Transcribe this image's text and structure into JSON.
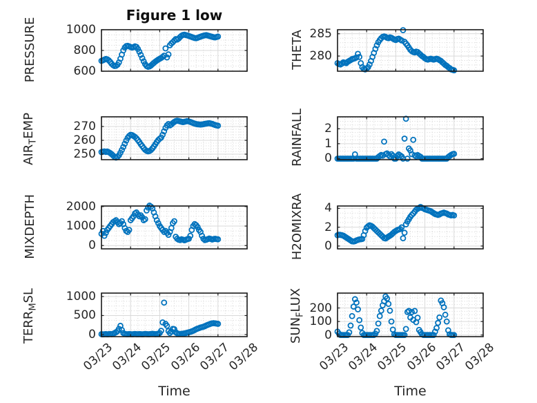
{
  "figure": {
    "title": "Figure 1 low",
    "xlabel": "Time",
    "colors": {
      "marker": "#0072BD",
      "axis_box": "#1a1a1a",
      "grid_major": "#d9d9d9",
      "grid_minor": "#cfcfcf",
      "text": "#262626"
    }
  },
  "x_axis": {
    "tick_labels": [
      "03/23",
      "03/24",
      "03/25",
      "03/26",
      "03/27",
      "03/28"
    ],
    "range_days": [
      0,
      5
    ],
    "major_step_days": 1,
    "minor_step_days": 0.25
  },
  "chart_data": [
    {
      "type": "scatter",
      "name": "pressure",
      "ylabel": "PRESSURE",
      "row": 0,
      "col": 0,
      "ylim": [
        600,
        1000
      ],
      "yticks": [
        600,
        800,
        1000
      ],
      "y_minor_step": 50,
      "series": {
        "t0": 0,
        "dt": 0.05,
        "values": [
          700,
          705,
          712,
          718,
          715,
          705,
          690,
          672,
          658,
          650,
          652,
          662,
          685,
          720,
          760,
          800,
          828,
          842,
          845,
          840,
          833,
          828,
          832,
          840,
          835,
          815,
          788,
          758,
          725,
          695,
          668,
          650,
          642,
          646,
          655,
          668,
          680,
          692,
          702,
          712,
          720,
          728,
          738,
          750,
          820,
          733,
          762,
          850,
          868,
          880,
          895,
          910,
          905,
          915,
          930,
          942,
          950,
          952,
          948,
          945,
          940,
          935,
          930,
          925,
          920,
          918,
          922,
          928,
          933,
          938,
          942,
          946,
          948,
          944,
          940,
          936,
          932,
          928,
          926,
          930,
          934
        ]
      }
    },
    {
      "type": "scatter",
      "name": "theta",
      "ylabel": "THETA",
      "row": 0,
      "col": 1,
      "ylim": [
        276.6,
        285.9
      ],
      "yticks": [
        280,
        285
      ],
      "y_minor_step": 1,
      "series": {
        "t0": 0,
        "dt": 0.05,
        "values": [
          278.4,
          278.2,
          278.1,
          278.3,
          278.6,
          278.5,
          278.4,
          278.7,
          278.9,
          279.1,
          279.3,
          279.4,
          279.5,
          279.7,
          280.5,
          279.8,
          278.4,
          277.5,
          277.1,
          277.0,
          277.2,
          277.5,
          278.1,
          278.9,
          279.8,
          280.7,
          281.6,
          282.4,
          283.1,
          283.6,
          284.0,
          284.3,
          284.4,
          284.3,
          284.1,
          284.0,
          284.2,
          284.1,
          283.9,
          283.7,
          283.6,
          283.8,
          283.9,
          283.7,
          283.5,
          285.8,
          283.2,
          282.8,
          282.4,
          281.9,
          281.4,
          281.1,
          280.9,
          280.8,
          281.0,
          280.9,
          280.6,
          280.3,
          280.0,
          279.8,
          279.5,
          279.3,
          279.2,
          279.3,
          279.4,
          279.3,
          279.2,
          279.3,
          279.4,
          279.3,
          279.1,
          278.9,
          278.6,
          278.3,
          278.0,
          277.8,
          277.5,
          277.3,
          277.0,
          276.9,
          276.8
        ]
      }
    },
    {
      "type": "scatter",
      "name": "air-temp",
      "ylabel": "AIR_TEMP",
      "row": 1,
      "col": 0,
      "ylim": [
        246,
        277
      ],
      "yticks": [
        250,
        260,
        270
      ],
      "y_minor_step": 2,
      "series": {
        "t0": 0,
        "dt": 0.05,
        "values": [
          251.5,
          251.8,
          252.0,
          251.6,
          251.9,
          251.4,
          250.8,
          250.0,
          249.0,
          248.0,
          247.5,
          248.0,
          249.2,
          251.0,
          253.0,
          255.2,
          257.5,
          259.8,
          261.8,
          263.2,
          264.0,
          263.8,
          263.2,
          262.5,
          261.5,
          260.2,
          258.8,
          257.2,
          255.8,
          254.4,
          253.2,
          252.4,
          252.0,
          252.3,
          253.0,
          254.2,
          255.6,
          257.2,
          258.8,
          260.2,
          261.2,
          262.0,
          264.0,
          266.5,
          269.0,
          270.8,
          271.8,
          270.8,
          271.5,
          272.5,
          273.3,
          273.9,
          274.2,
          274.0,
          273.7,
          273.4,
          273.2,
          273.4,
          273.7,
          273.9,
          273.7,
          273.3,
          272.9,
          272.5,
          272.1,
          271.8,
          271.6,
          271.5,
          271.4,
          271.5,
          271.7,
          271.9,
          272.1,
          272.3,
          272.4,
          272.2,
          271.9,
          271.5,
          271.1,
          270.8,
          270.6
        ]
      }
    },
    {
      "type": "scatter",
      "name": "rainfall",
      "ylabel": "RAINFALL",
      "row": 1,
      "col": 1,
      "ylim": [
        -0.07,
        2.8
      ],
      "yticks": [
        0,
        1,
        2
      ],
      "y_minor_step": 0.25,
      "series": {
        "t0": 0,
        "dt": 0.05,
        "values": [
          0,
          0,
          0,
          0,
          0,
          0,
          0,
          0,
          0,
          0,
          0,
          0,
          0.29,
          0,
          0,
          0,
          0,
          0,
          0,
          0,
          0,
          0,
          0,
          0,
          0,
          0,
          0,
          0,
          0.1,
          0.18,
          0.25,
          0.2,
          1.14,
          0.3,
          0.35,
          0.25,
          0.15,
          0.3,
          0.2,
          0,
          0,
          0.18,
          0.28,
          0.22,
          0.15,
          0,
          1.34,
          2.67,
          0,
          0.68,
          0.55,
          0.3,
          1.26,
          0.22,
          0.15,
          0.24,
          0.18,
          0.12,
          0,
          0,
          0,
          0,
          0,
          0,
          0,
          0,
          0,
          0,
          0,
          0,
          0,
          0,
          0,
          0,
          0,
          0,
          0.1,
          0.18,
          0.25,
          0.3,
          0.32
        ]
      }
    },
    {
      "type": "scatter",
      "name": "mixdepth",
      "ylabel": "MIXDEPTH",
      "row": 2,
      "col": 0,
      "ylim": [
        -170,
        2030
      ],
      "yticks": [
        0,
        1000,
        2000
      ],
      "y_minor_step": 250,
      "series": {
        "t0": 0,
        "dt": 0.05,
        "values": [
          600,
          750,
          500,
          650,
          800,
          900,
          1000,
          1100,
          1200,
          1250,
          1300,
          1200,
          1100,
          1150,
          1250,
          1100,
          900,
          750,
          700,
          800,
          1300,
          1400,
          1500,
          1650,
          1700,
          1600,
          1500,
          1550,
          1450,
          1300,
          1350,
          1800,
          1950,
          2050,
          2000,
          1900,
          1700,
          1500,
          1300,
          1150,
          1000,
          900,
          800,
          700,
          750,
          650,
          550,
          700,
          900,
          1150,
          1250,
          450,
          350,
          300,
          280,
          320,
          300,
          270,
          300,
          330,
          350,
          500,
          800,
          1000,
          1100,
          1050,
          950,
          800,
          700,
          500,
          350,
          280,
          300,
          330,
          360,
          340,
          310,
          330,
          350,
          330,
          320
        ]
      }
    },
    {
      "type": "scatter",
      "name": "h2omixra",
      "ylabel": "H2OMIXRA",
      "row": 2,
      "col": 1,
      "ylim": [
        -0.3,
        4.25
      ],
      "yticks": [
        0,
        2,
        4
      ],
      "y_minor_step": 0.5,
      "series": {
        "t0": 0,
        "dt": 0.05,
        "values": [
          1.15,
          1.2,
          1.18,
          1.15,
          1.1,
          1.0,
          0.9,
          0.8,
          0.7,
          0.6,
          0.5,
          0.48,
          0.52,
          0.6,
          0.65,
          0.7,
          0.72,
          0.75,
          1.15,
          1.6,
          1.95,
          2.1,
          2.2,
          2.15,
          2.05,
          1.9,
          1.75,
          1.6,
          1.45,
          1.3,
          1.15,
          1.0,
          0.85,
          0.8,
          0.9,
          1.0,
          1.1,
          1.2,
          1.35,
          1.5,
          1.6,
          1.7,
          1.75,
          1.8,
          1.98,
          0.83,
          1.41,
          2.3,
          2.6,
          2.85,
          3.1,
          3.3,
          3.45,
          3.65,
          3.85,
          3.95,
          4.05,
          4.15,
          4.05,
          4.0,
          3.9,
          3.85,
          3.8,
          3.75,
          3.7,
          3.6,
          3.5,
          3.4,
          3.35,
          3.3,
          3.35,
          3.45,
          3.5,
          3.55,
          3.5,
          3.45,
          3.35,
          3.3,
          3.25,
          3.3,
          3.25
        ]
      }
    },
    {
      "type": "scatter",
      "name": "terr-msl",
      "ylabel": "TERR_MSL",
      "row": 3,
      "col": 0,
      "ylim": [
        -55,
        1090
      ],
      "yticks": [
        0,
        500,
        1000
      ],
      "y_minor_step": 125,
      "series": {
        "t0": 0,
        "dt": 0.05,
        "values": [
          10,
          5,
          8,
          12,
          6,
          10,
          15,
          10,
          20,
          40,
          60,
          90,
          150,
          230,
          120,
          40,
          15,
          10,
          8,
          12,
          10,
          6,
          10,
          15,
          10,
          8,
          12,
          10,
          6,
          10,
          15,
          12,
          8,
          10,
          15,
          20,
          15,
          10,
          12,
          25,
          40,
          100,
          320,
          840,
          280,
          230,
          90,
          40,
          80,
          150,
          140,
          60,
          30,
          20,
          15,
          20,
          25,
          30,
          40,
          50,
          60,
          70,
          85,
          100,
          120,
          140,
          155,
          170,
          185,
          195,
          205,
          220,
          240,
          255,
          270,
          285,
          295,
          300,
          295,
          288,
          282
        ]
      }
    },
    {
      "type": "scatter",
      "name": "sun-flux",
      "ylabel": "SUN_FLUX",
      "row": 3,
      "col": 1,
      "ylim": [
        -12,
        310
      ],
      "yticks": [
        0,
        100,
        200
      ],
      "y_minor_step": 25,
      "series": {
        "t0": 0,
        "dt": 0.05,
        "values": [
          25,
          10,
          0,
          0,
          0,
          0,
          0,
          0,
          20,
          70,
          140,
          210,
          265,
          240,
          190,
          110,
          55,
          15,
          0,
          0,
          0,
          0,
          0,
          0,
          0,
          0,
          10,
          30,
          85,
          140,
          180,
          220,
          250,
          285,
          270,
          230,
          180,
          100,
          40,
          5,
          0,
          0,
          0,
          0,
          0,
          0,
          0,
          45,
          170,
          178,
          130,
          170,
          112,
          178,
          95,
          128,
          38,
          22,
          5,
          0,
          0,
          0,
          0,
          0,
          0,
          0,
          0,
          25,
          52,
          90,
          130,
          255,
          235,
          205,
          150,
          100,
          35,
          5,
          0,
          0,
          0
        ]
      }
    }
  ]
}
